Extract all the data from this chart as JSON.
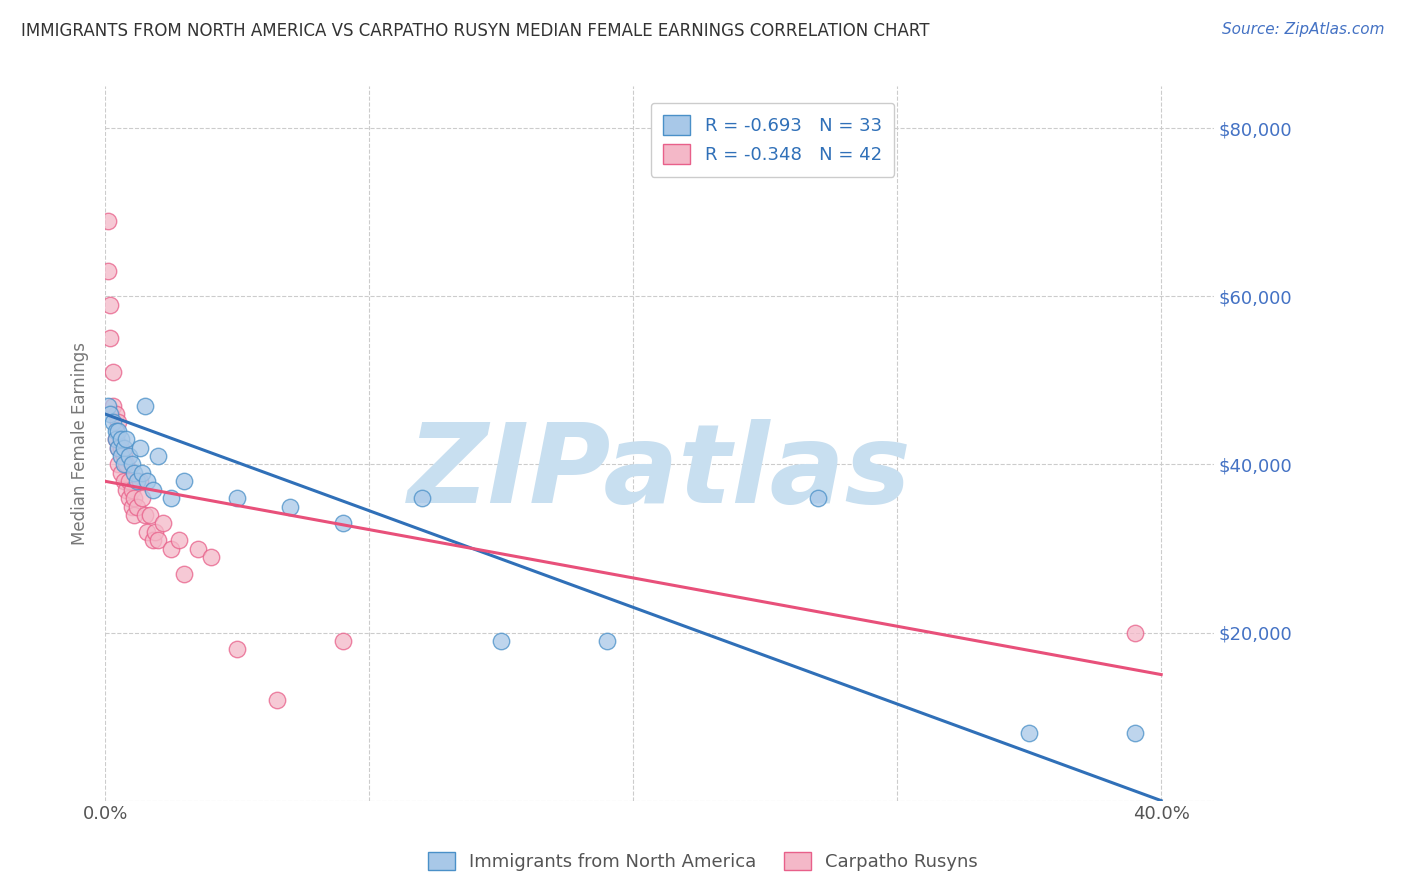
{
  "title": "IMMIGRANTS FROM NORTH AMERICA VS CARPATHO RUSYN MEDIAN FEMALE EARNINGS CORRELATION CHART",
  "source": "Source: ZipAtlas.com",
  "ylabel": "Median Female Earnings",
  "y_ticks": [
    0,
    20000,
    40000,
    60000,
    80000
  ],
  "y_tick_labels": [
    "",
    "$20,000",
    "$40,000",
    "$60,000",
    "$80,000"
  ],
  "x_ticks": [
    0,
    0.1,
    0.2,
    0.3,
    0.4
  ],
  "x_tick_labels": [
    "0.0%",
    "",
    "",
    "",
    "40.0%"
  ],
  "blue_R": -0.693,
  "blue_N": 33,
  "pink_R": -0.348,
  "pink_N": 42,
  "blue_color": "#a8c8e8",
  "pink_color": "#f4b8c8",
  "blue_edge_color": "#4a90c8",
  "pink_edge_color": "#e8608a",
  "blue_line_color": "#3070b8",
  "pink_line_color": "#e8507a",
  "watermark_zip_color": "#c8dff0",
  "watermark_atlas_color": "#c0d8ee",
  "watermark_text": "ZIPatlas",
  "title_color": "#333333",
  "source_color": "#4472c4",
  "axis_label_color": "#777777",
  "tick_label_color_right": "#4472c4",
  "legend_label_color": "#555555",
  "legend_value_color": "#3070b8",
  "blue_scatter_x": [
    0.001,
    0.002,
    0.003,
    0.004,
    0.004,
    0.005,
    0.005,
    0.006,
    0.006,
    0.007,
    0.007,
    0.008,
    0.009,
    0.01,
    0.011,
    0.012,
    0.013,
    0.014,
    0.015,
    0.016,
    0.018,
    0.02,
    0.025,
    0.03,
    0.05,
    0.07,
    0.09,
    0.12,
    0.15,
    0.19,
    0.27,
    0.35,
    0.39
  ],
  "blue_scatter_y": [
    47000,
    46000,
    45000,
    44000,
    43000,
    44000,
    42000,
    43000,
    41000,
    42000,
    40000,
    43000,
    41000,
    40000,
    39000,
    38000,
    42000,
    39000,
    47000,
    38000,
    37000,
    41000,
    36000,
    38000,
    36000,
    35000,
    33000,
    36000,
    19000,
    19000,
    36000,
    8000,
    8000
  ],
  "pink_scatter_x": [
    0.001,
    0.001,
    0.002,
    0.002,
    0.003,
    0.003,
    0.004,
    0.004,
    0.005,
    0.005,
    0.005,
    0.006,
    0.006,
    0.007,
    0.007,
    0.008,
    0.008,
    0.009,
    0.009,
    0.01,
    0.01,
    0.011,
    0.011,
    0.012,
    0.013,
    0.014,
    0.015,
    0.016,
    0.017,
    0.018,
    0.019,
    0.02,
    0.022,
    0.025,
    0.028,
    0.03,
    0.035,
    0.04,
    0.05,
    0.065,
    0.09,
    0.39
  ],
  "pink_scatter_y": [
    69000,
    63000,
    59000,
    55000,
    51000,
    47000,
    46000,
    43000,
    45000,
    42000,
    40000,
    42000,
    39000,
    41000,
    38000,
    40000,
    37000,
    38000,
    36000,
    37000,
    35000,
    36000,
    34000,
    35000,
    38000,
    36000,
    34000,
    32000,
    34000,
    31000,
    32000,
    31000,
    33000,
    30000,
    31000,
    27000,
    30000,
    29000,
    18000,
    12000,
    19000,
    20000
  ],
  "blue_line_x0": 0.0,
  "blue_line_y0": 46000,
  "blue_line_x1": 0.4,
  "blue_line_y1": 0,
  "pink_line_x0": 0.0,
  "pink_line_y0": 38000,
  "pink_line_x1": 0.4,
  "pink_line_y1": 15000
}
